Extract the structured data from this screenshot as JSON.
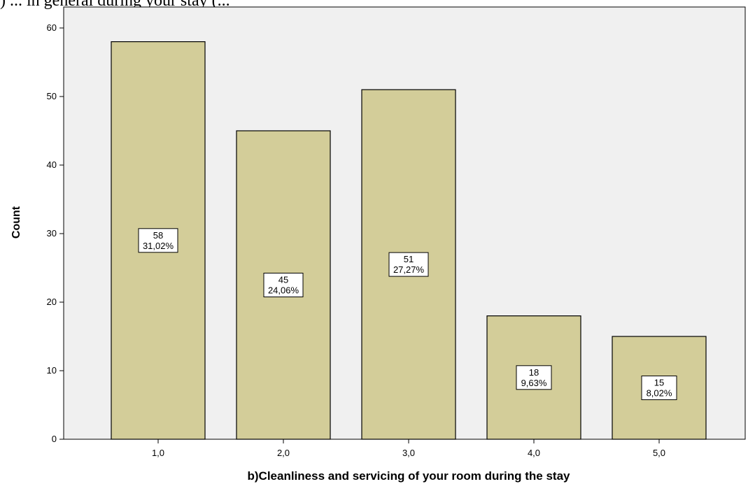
{
  "header_fragment": ") ... in general during your stay (... ",
  "chart_data": {
    "type": "bar",
    "categories": [
      "1,0",
      "2,0",
      "3,0",
      "4,0",
      "5,0"
    ],
    "values": [
      58,
      45,
      51,
      18,
      15
    ],
    "percent_labels": [
      "31,02%",
      "24,06%",
      "27,27%",
      "9,63%",
      "8,02%"
    ],
    "xlabel": "b)Cleanliness and servicing of your room during the stay",
    "ylabel": "Count",
    "ylim": [
      0,
      64
    ],
    "yticks": [
      0,
      10,
      20,
      30,
      40,
      50,
      60
    ],
    "grid": false,
    "colors": {
      "bar_fill": "#d3cd99",
      "bar_stroke": "#000000",
      "plot_background": "#f0f0f0",
      "label_box": "#ffffff"
    }
  }
}
